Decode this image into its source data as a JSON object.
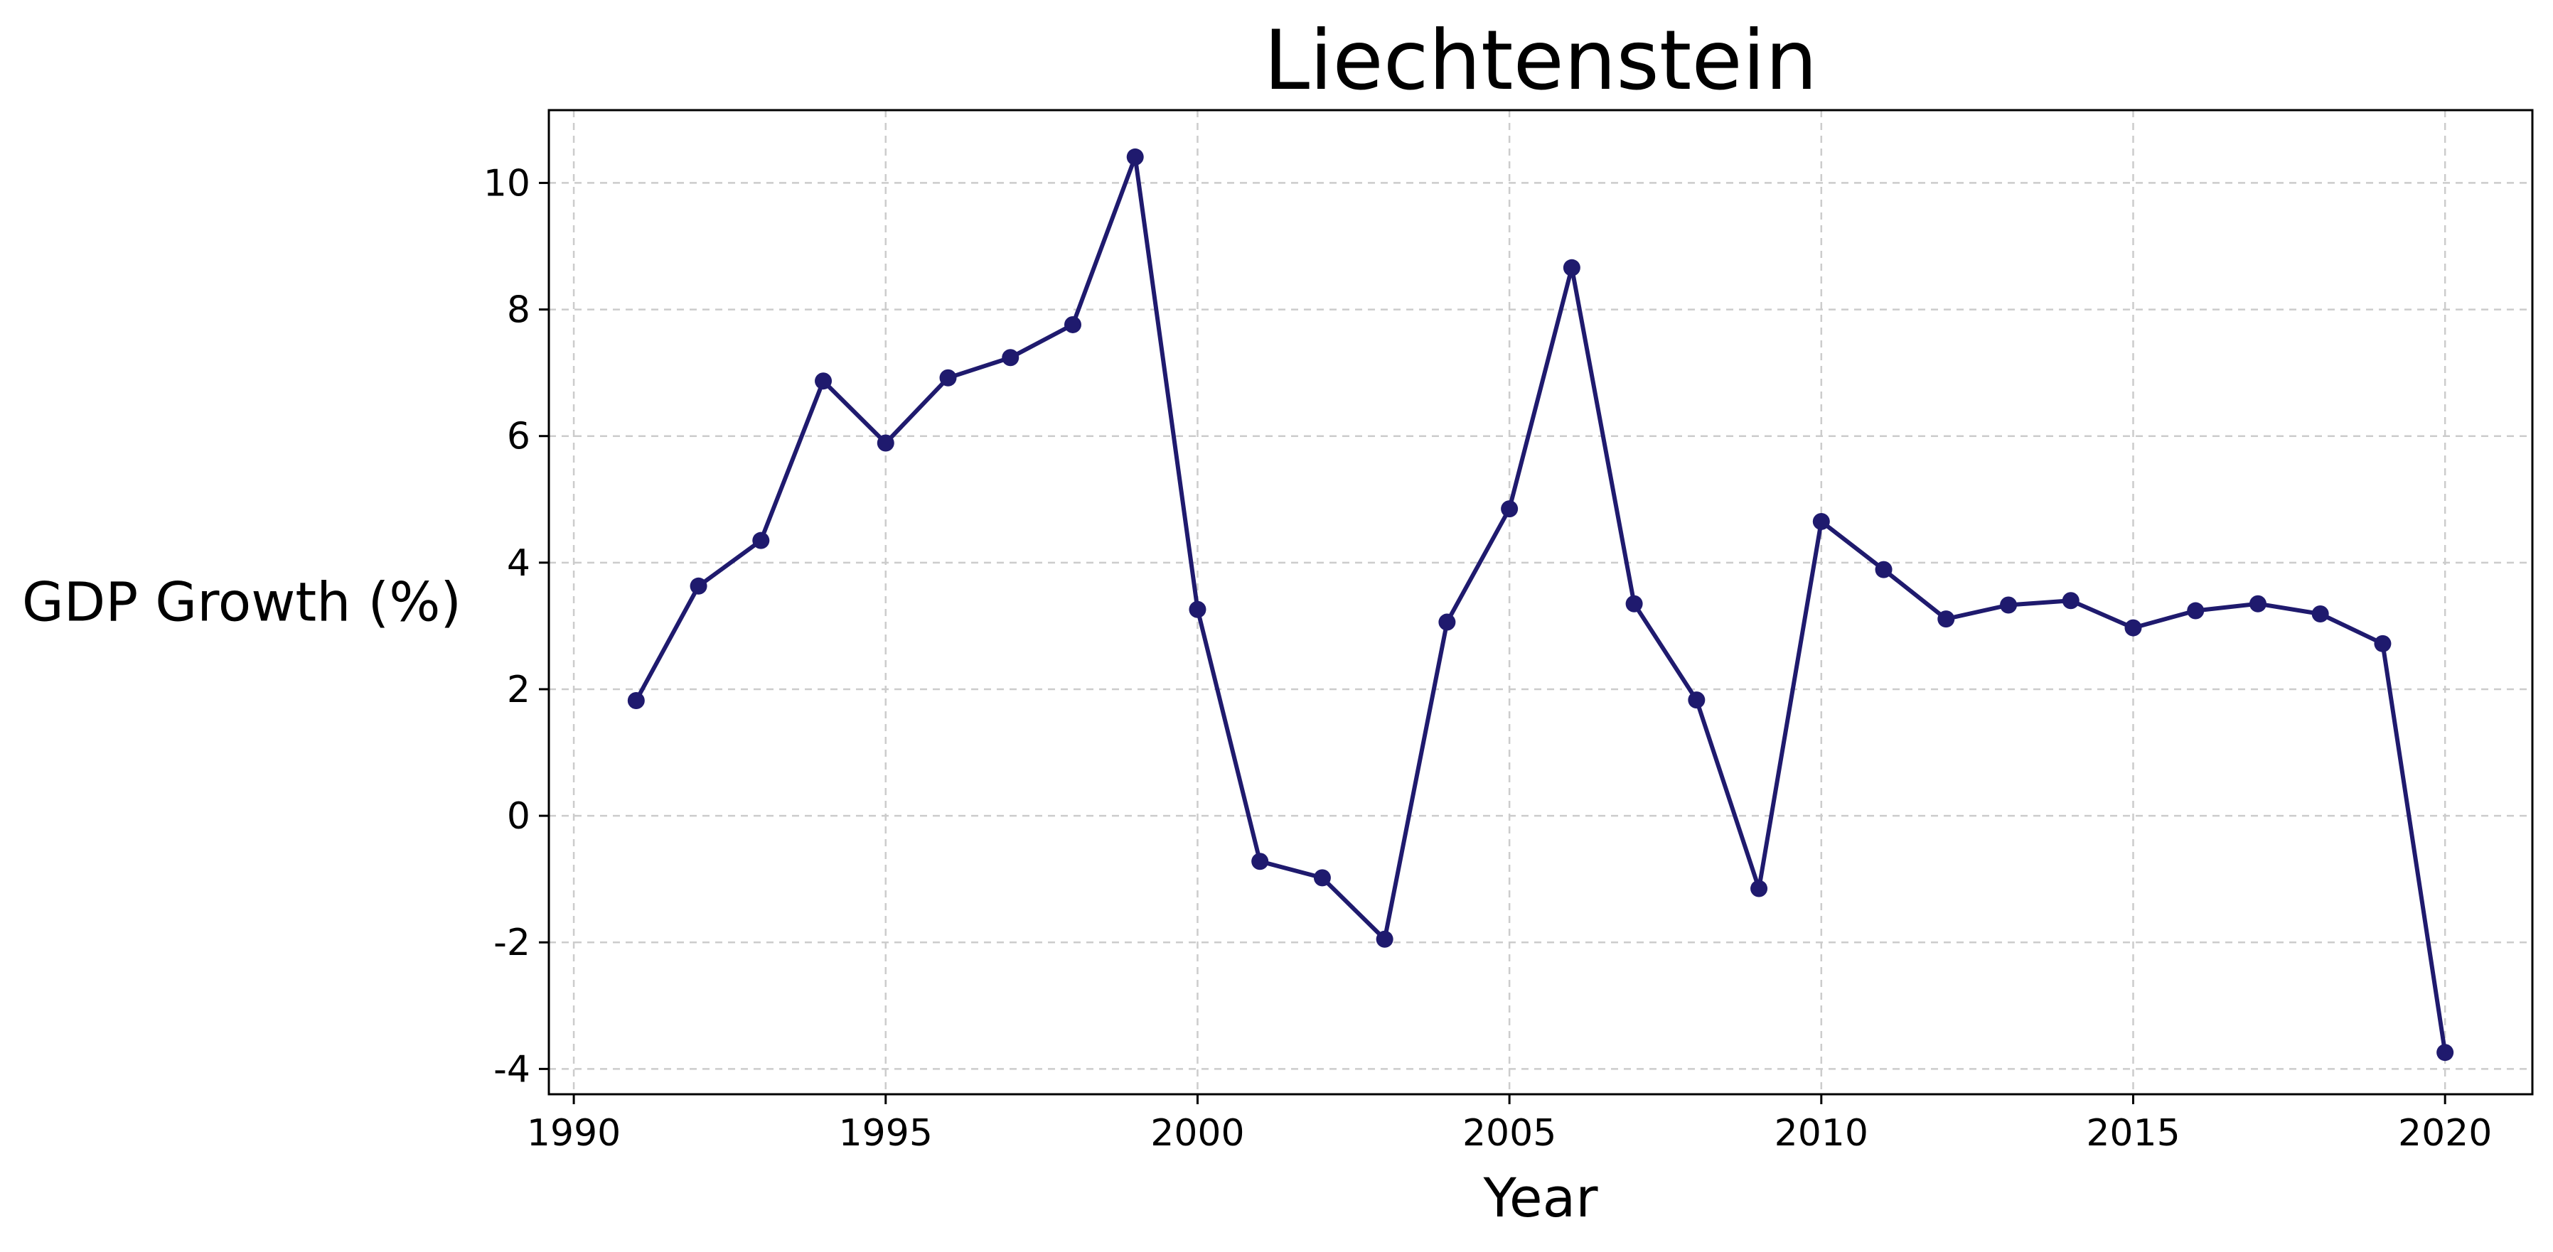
{
  "chart_data": {
    "type": "line",
    "title": "Liechtenstein",
    "xlabel": "Year",
    "ylabel": "GDP Growth (%)",
    "xlim": [
      1989.6,
      2021.4
    ],
    "ylim": [
      -4.4,
      11.15
    ],
    "xticks": [
      1990,
      1995,
      2000,
      2005,
      2010,
      2015,
      2020
    ],
    "yticks": [
      -4,
      -2,
      0,
      2,
      4,
      6,
      8,
      10
    ],
    "grid": true,
    "line_color": "#1f1a6e",
    "series": [
      {
        "x": [
          1991,
          1992,
          1993,
          1994,
          1995,
          1996,
          1997,
          1998,
          1999,
          2000,
          2001,
          2002,
          2003,
          2004,
          2005,
          2006,
          2007,
          2008,
          2009,
          2010,
          2011,
          2012,
          2013,
          2014,
          2015,
          2016,
          2017,
          2018,
          2019,
          2020
        ],
        "values": [
          1.82,
          3.63,
          4.35,
          6.87,
          5.89,
          6.92,
          7.24,
          7.76,
          10.41,
          3.26,
          -0.72,
          -0.98,
          -1.95,
          3.06,
          4.85,
          8.66,
          3.35,
          1.83,
          -1.15,
          4.65,
          3.89,
          3.11,
          3.33,
          3.4,
          2.97,
          3.24,
          3.35,
          3.19,
          2.72,
          -3.74
        ]
      }
    ]
  }
}
